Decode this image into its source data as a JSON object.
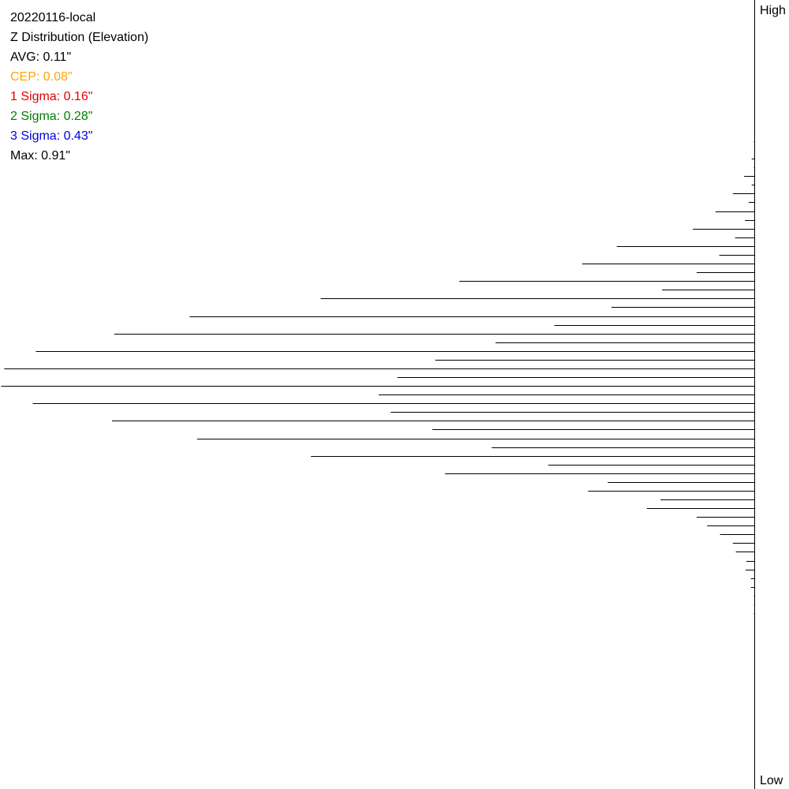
{
  "header": {
    "title": "20220116-local",
    "subtitle": "Z Distribution (Elevation)"
  },
  "stats": [
    {
      "label": "AVG: 0.11\"",
      "color": "#000000"
    },
    {
      "label": "CEP: 0.08\"",
      "color": "#FFA500"
    },
    {
      "label": "1 Sigma: 0.16\"",
      "color": "#E00000"
    },
    {
      "label": "2 Sigma: 0.28\"",
      "color": "#008000"
    },
    {
      "label": "3 Sigma: 0.43\"",
      "color": "#0000E0"
    },
    {
      "label": "Max: 0.91\"",
      "color": "#000000"
    }
  ],
  "axis": {
    "top_label": "High",
    "bottom_label": "Low"
  },
  "chart_data": {
    "type": "bar",
    "orientation": "horizontal",
    "subtitle": "Z Distribution (Elevation)",
    "xlim": [
      0,
      1
    ],
    "series": [
      {
        "values": [
          0.001,
          0.004,
          0.014,
          0.029,
          0.052,
          0.082,
          0.183,
          0.229,
          0.392,
          0.576,
          0.75,
          0.85,
          0.954,
          0.996,
          1.0,
          0.958,
          0.853,
          0.74,
          0.589,
          0.411,
          0.221,
          0.143,
          0.063,
          0.029,
          0.011,
          0.005,
          0.001,
          0.001
        ]
      },
      {
        "values": [
          0.0,
          0.001,
          0.004,
          0.008,
          0.013,
          0.026,
          0.047,
          0.077,
          0.123,
          0.19,
          0.266,
          0.344,
          0.424,
          0.474,
          0.499,
          0.483,
          0.428,
          0.349,
          0.274,
          0.195,
          0.125,
          0.077,
          0.046,
          0.025,
          0.012,
          0.005,
          0.001,
          0.0
        ]
      }
    ]
  }
}
